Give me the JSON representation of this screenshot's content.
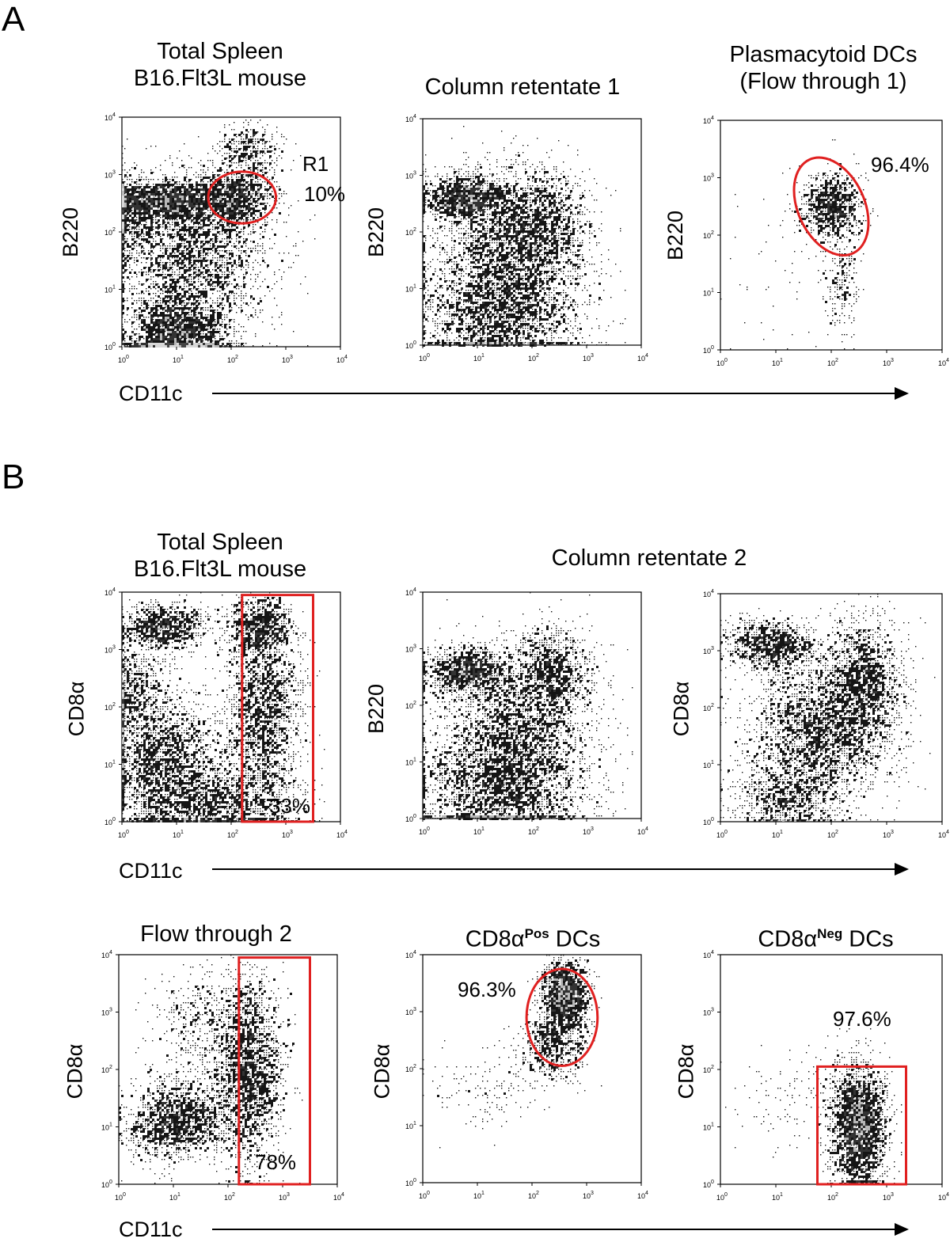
{
  "figure": {
    "panel_a": "A",
    "panel_b": "B",
    "tick_labels": [
      "10",
      "10",
      "10",
      "10",
      "10"
    ],
    "tick_exponents": [
      "0",
      "1",
      "2",
      "3",
      "4"
    ],
    "gate_color": "#e02020",
    "section_b_title": "Column retentate 2",
    "arrow_labels": {
      "row1": "CD11c",
      "row2": "CD11c",
      "row3": "CD11c"
    }
  },
  "chart_data": [
    {
      "id": "a1",
      "type": "scatter",
      "title": "Total Spleen\nB16.Flt3L mouse",
      "title_lines": [
        "Total Spleen",
        "B16.Flt3L mouse"
      ],
      "xlabel": "CD11c",
      "ylabel": "B220",
      "xscale": "log",
      "yscale": "log",
      "xlim": [
        1,
        10000
      ],
      "ylim": [
        1,
        10000
      ],
      "gate": {
        "shape": "ellipse",
        "name": "R1",
        "percent": "10%",
        "label": "R1"
      }
    },
    {
      "id": "a2",
      "type": "scatter",
      "title": "Column retentate 1",
      "title_lines": [
        "Column retentate 1"
      ],
      "xlabel": "CD11c",
      "ylabel": "B220",
      "xscale": "log",
      "yscale": "log",
      "xlim": [
        1,
        10000
      ],
      "ylim": [
        1,
        10000
      ]
    },
    {
      "id": "a3",
      "type": "scatter",
      "title": "Plasmacytoid DCs\n(Flow through 1)",
      "title_lines": [
        "Plasmacytoid DCs",
        "(Flow through 1)"
      ],
      "xlabel": "CD11c",
      "ylabel": "B220",
      "xscale": "log",
      "yscale": "log",
      "xlim": [
        1,
        10000
      ],
      "ylim": [
        1,
        10000
      ],
      "gate": {
        "shape": "ellipse",
        "percent": "96.4%"
      }
    },
    {
      "id": "b1",
      "type": "scatter",
      "title": "Total Spleen\nB16.Flt3L mouse",
      "title_lines": [
        "Total Spleen",
        "B16.Flt3L mouse"
      ],
      "xlabel": "CD11c",
      "ylabel": "CD8α",
      "xscale": "log",
      "yscale": "log",
      "xlim": [
        1,
        10000
      ],
      "ylim": [
        1,
        10000
      ],
      "gate": {
        "shape": "rectangle",
        "percent": "33%"
      }
    },
    {
      "id": "b2",
      "type": "scatter",
      "title": "Column retentate 2",
      "xlabel": "CD11c",
      "ylabel": "B220",
      "xscale": "log",
      "yscale": "log",
      "xlim": [
        1,
        10000
      ],
      "ylim": [
        1,
        10000
      ]
    },
    {
      "id": "b3",
      "type": "scatter",
      "title": "Column retentate 2",
      "xlabel": "CD11c",
      "ylabel": "CD8α",
      "xscale": "log",
      "yscale": "log",
      "xlim": [
        1,
        10000
      ],
      "ylim": [
        1,
        10000
      ]
    },
    {
      "id": "b4",
      "type": "scatter",
      "title": "Flow through 2",
      "title_lines": [
        "Flow through 2"
      ],
      "xlabel": "CD11c",
      "ylabel": "CD8α",
      "xscale": "log",
      "yscale": "log",
      "xlim": [
        1,
        10000
      ],
      "ylim": [
        1,
        10000
      ],
      "gate": {
        "shape": "rectangle",
        "percent": "78%"
      }
    },
    {
      "id": "b5",
      "type": "scatter",
      "title": "CD8αPos DCs",
      "title_base": "CD8α",
      "title_sup": "Pos",
      "title_tail": " DCs",
      "xlabel": "CD11c",
      "ylabel": "CD8α",
      "xscale": "log",
      "yscale": "log",
      "xlim": [
        1,
        10000
      ],
      "ylim": [
        1,
        10000
      ],
      "gate": {
        "shape": "ellipse",
        "percent": "96.3%"
      }
    },
    {
      "id": "b6",
      "type": "scatter",
      "title": "CD8αNeg DCs",
      "title_base": "CD8α",
      "title_sup": "Neg",
      "title_tail": " DCs",
      "xlabel": "CD11c",
      "ylabel": "CD8α",
      "xscale": "log",
      "yscale": "log",
      "xlim": [
        1,
        10000
      ],
      "ylim": [
        1,
        10000
      ],
      "gate": {
        "shape": "rectangle",
        "percent": "97.6%"
      }
    }
  ]
}
